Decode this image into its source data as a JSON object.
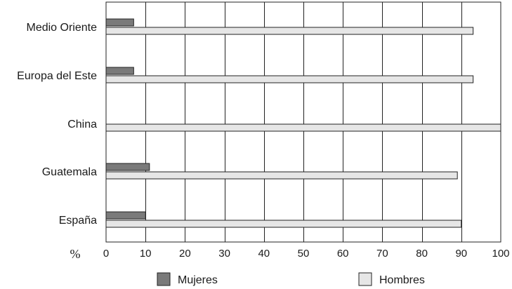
{
  "chart_data": {
    "type": "bar",
    "orientation": "horizontal",
    "categories": [
      "Medio Oriente",
      "Europa del Este",
      "China",
      "Guatemala",
      "España"
    ],
    "series": [
      {
        "name": "Mujeres",
        "values": [
          7,
          7,
          0,
          11,
          10
        ],
        "color": "#7a7a7a"
      },
      {
        "name": "Hombres",
        "values": [
          93,
          93,
          100,
          89,
          90
        ],
        "color": "#e6e6e6"
      }
    ],
    "x_unit": "%",
    "xlim": [
      0,
      100
    ],
    "x_ticks": [
      0,
      10,
      20,
      30,
      40,
      50,
      60,
      70,
      80,
      90,
      100
    ],
    "grid": "vertical",
    "legend_position": "bottom"
  }
}
